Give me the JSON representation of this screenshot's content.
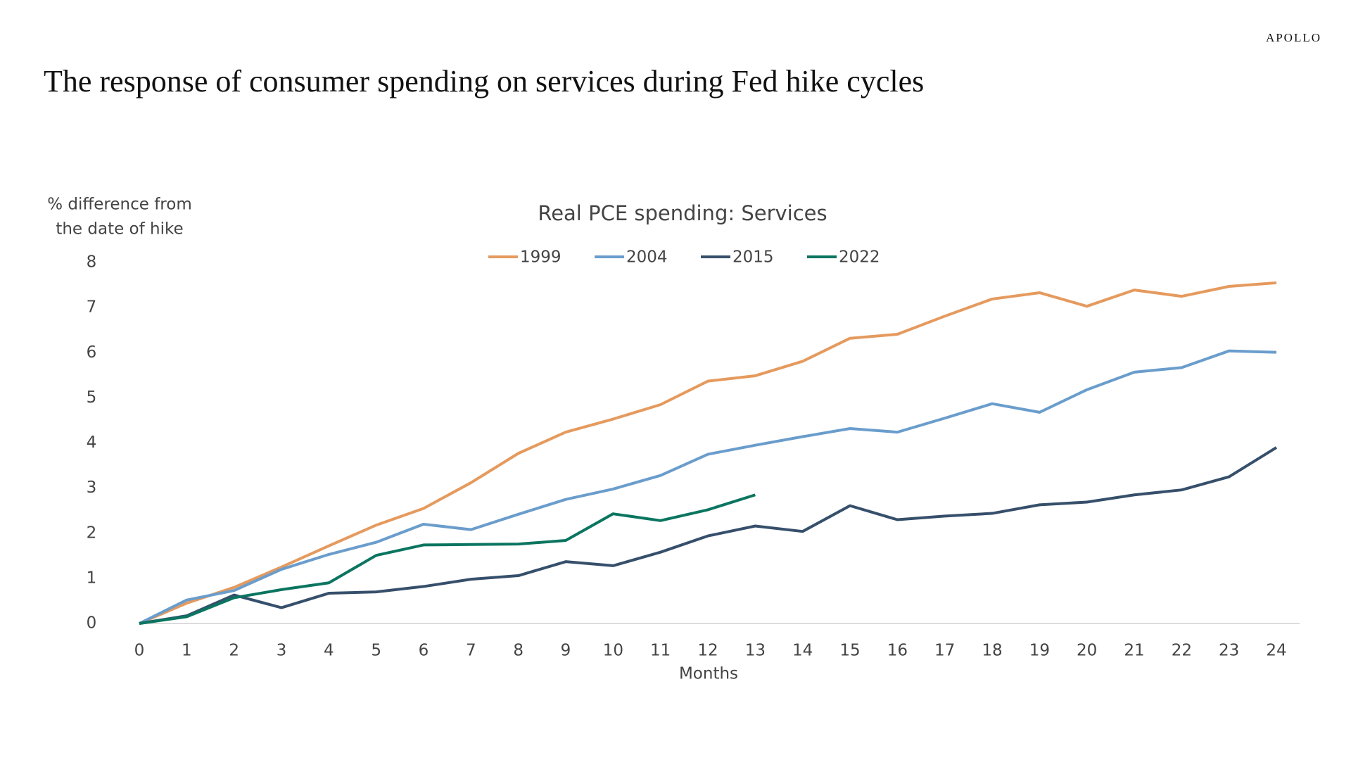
{
  "brand": "APOLLO",
  "title": "The response of consumer spending on services during Fed hike cycles",
  "chart_data": {
    "type": "line",
    "title": "Real PCE spending: Services",
    "y_label": [
      "% difference from",
      "the date of hike"
    ],
    "x_label": "Months",
    "x": [
      0,
      1,
      2,
      3,
      4,
      5,
      6,
      7,
      8,
      9,
      10,
      11,
      12,
      13,
      14,
      15,
      16,
      17,
      18,
      19,
      20,
      21,
      22,
      23,
      24
    ],
    "xlim": [
      0,
      24
    ],
    "xticks": [
      0,
      1,
      2,
      3,
      4,
      5,
      6,
      7,
      8,
      9,
      10,
      11,
      12,
      13,
      14,
      15,
      16,
      17,
      18,
      19,
      20,
      21,
      22,
      23,
      24
    ],
    "ylim": [
      0,
      8
    ],
    "yticks": [
      0,
      1,
      2,
      3,
      4,
      5,
      6,
      7,
      8
    ],
    "grid": false,
    "legend": "top",
    "series": [
      {
        "name": "1999",
        "color": "#e59a5e",
        "values": [
          0,
          0.45,
          0.8,
          1.25,
          1.72,
          2.18,
          2.55,
          3.12,
          3.77,
          4.24,
          4.53,
          4.85,
          5.37,
          5.49,
          5.81,
          6.32,
          6.41,
          6.81,
          7.19,
          7.33,
          7.03,
          7.39,
          7.25,
          7.47,
          7.55
        ]
      },
      {
        "name": "2004",
        "color": "#6a9dcc",
        "values": [
          0,
          0.52,
          0.73,
          1.2,
          1.53,
          1.8,
          2.2,
          2.08,
          2.42,
          2.75,
          2.98,
          3.28,
          3.75,
          3.95,
          4.14,
          4.32,
          4.24,
          4.55,
          4.87,
          4.68,
          5.18,
          5.57,
          5.67,
          6.04,
          6.01
        ]
      },
      {
        "name": "2015",
        "color": "#364f6b",
        "values": [
          0,
          0.17,
          0.63,
          0.35,
          0.67,
          0.7,
          0.82,
          0.98,
          1.06,
          1.37,
          1.28,
          1.58,
          1.94,
          2.16,
          2.04,
          2.61,
          2.3,
          2.38,
          2.44,
          2.63,
          2.69,
          2.85,
          2.96,
          3.25,
          3.9
        ]
      },
      {
        "name": "2022",
        "color": "#0b7560",
        "values": [
          0,
          0.15,
          0.57,
          0.75,
          0.9,
          1.51,
          1.74,
          1.75,
          1.76,
          1.84,
          2.43,
          2.28,
          2.52,
          2.85,
          null,
          null,
          null,
          null,
          null,
          null,
          null,
          null,
          null,
          null,
          null
        ]
      }
    ]
  }
}
